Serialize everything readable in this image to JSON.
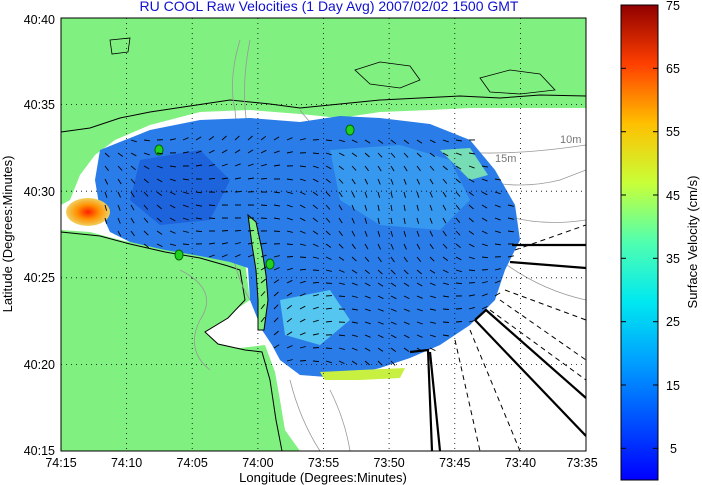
{
  "title": "RU COOL Raw Velocities (1 Day Avg) 2007/02/02 1500 GMT",
  "x_axis": {
    "label": "Longitude (Degrees:Minutes)",
    "ticks": [
      "74:15",
      "74:10",
      "74:05",
      "74:00",
      "73:55",
      "73:50",
      "73:45",
      "73:40",
      "73:35"
    ]
  },
  "y_axis": {
    "label": "Latitude (Degrees:Minutes)",
    "ticks": [
      "40:40",
      "40:35",
      "40:30",
      "40:25",
      "40:20",
      "40:15"
    ]
  },
  "colorbar": {
    "label": "Surface Velocity (cm/s)",
    "ticks": [
      "75",
      "65",
      "55",
      "45",
      "35",
      "25",
      "15",
      "5"
    ],
    "range": [
      0,
      75
    ]
  },
  "depth_labels": [
    "10m",
    "15m"
  ],
  "colors": {
    "land": "#80f080",
    "water": "#ffffff",
    "title": "#1010d0",
    "grid": "#000000"
  }
}
